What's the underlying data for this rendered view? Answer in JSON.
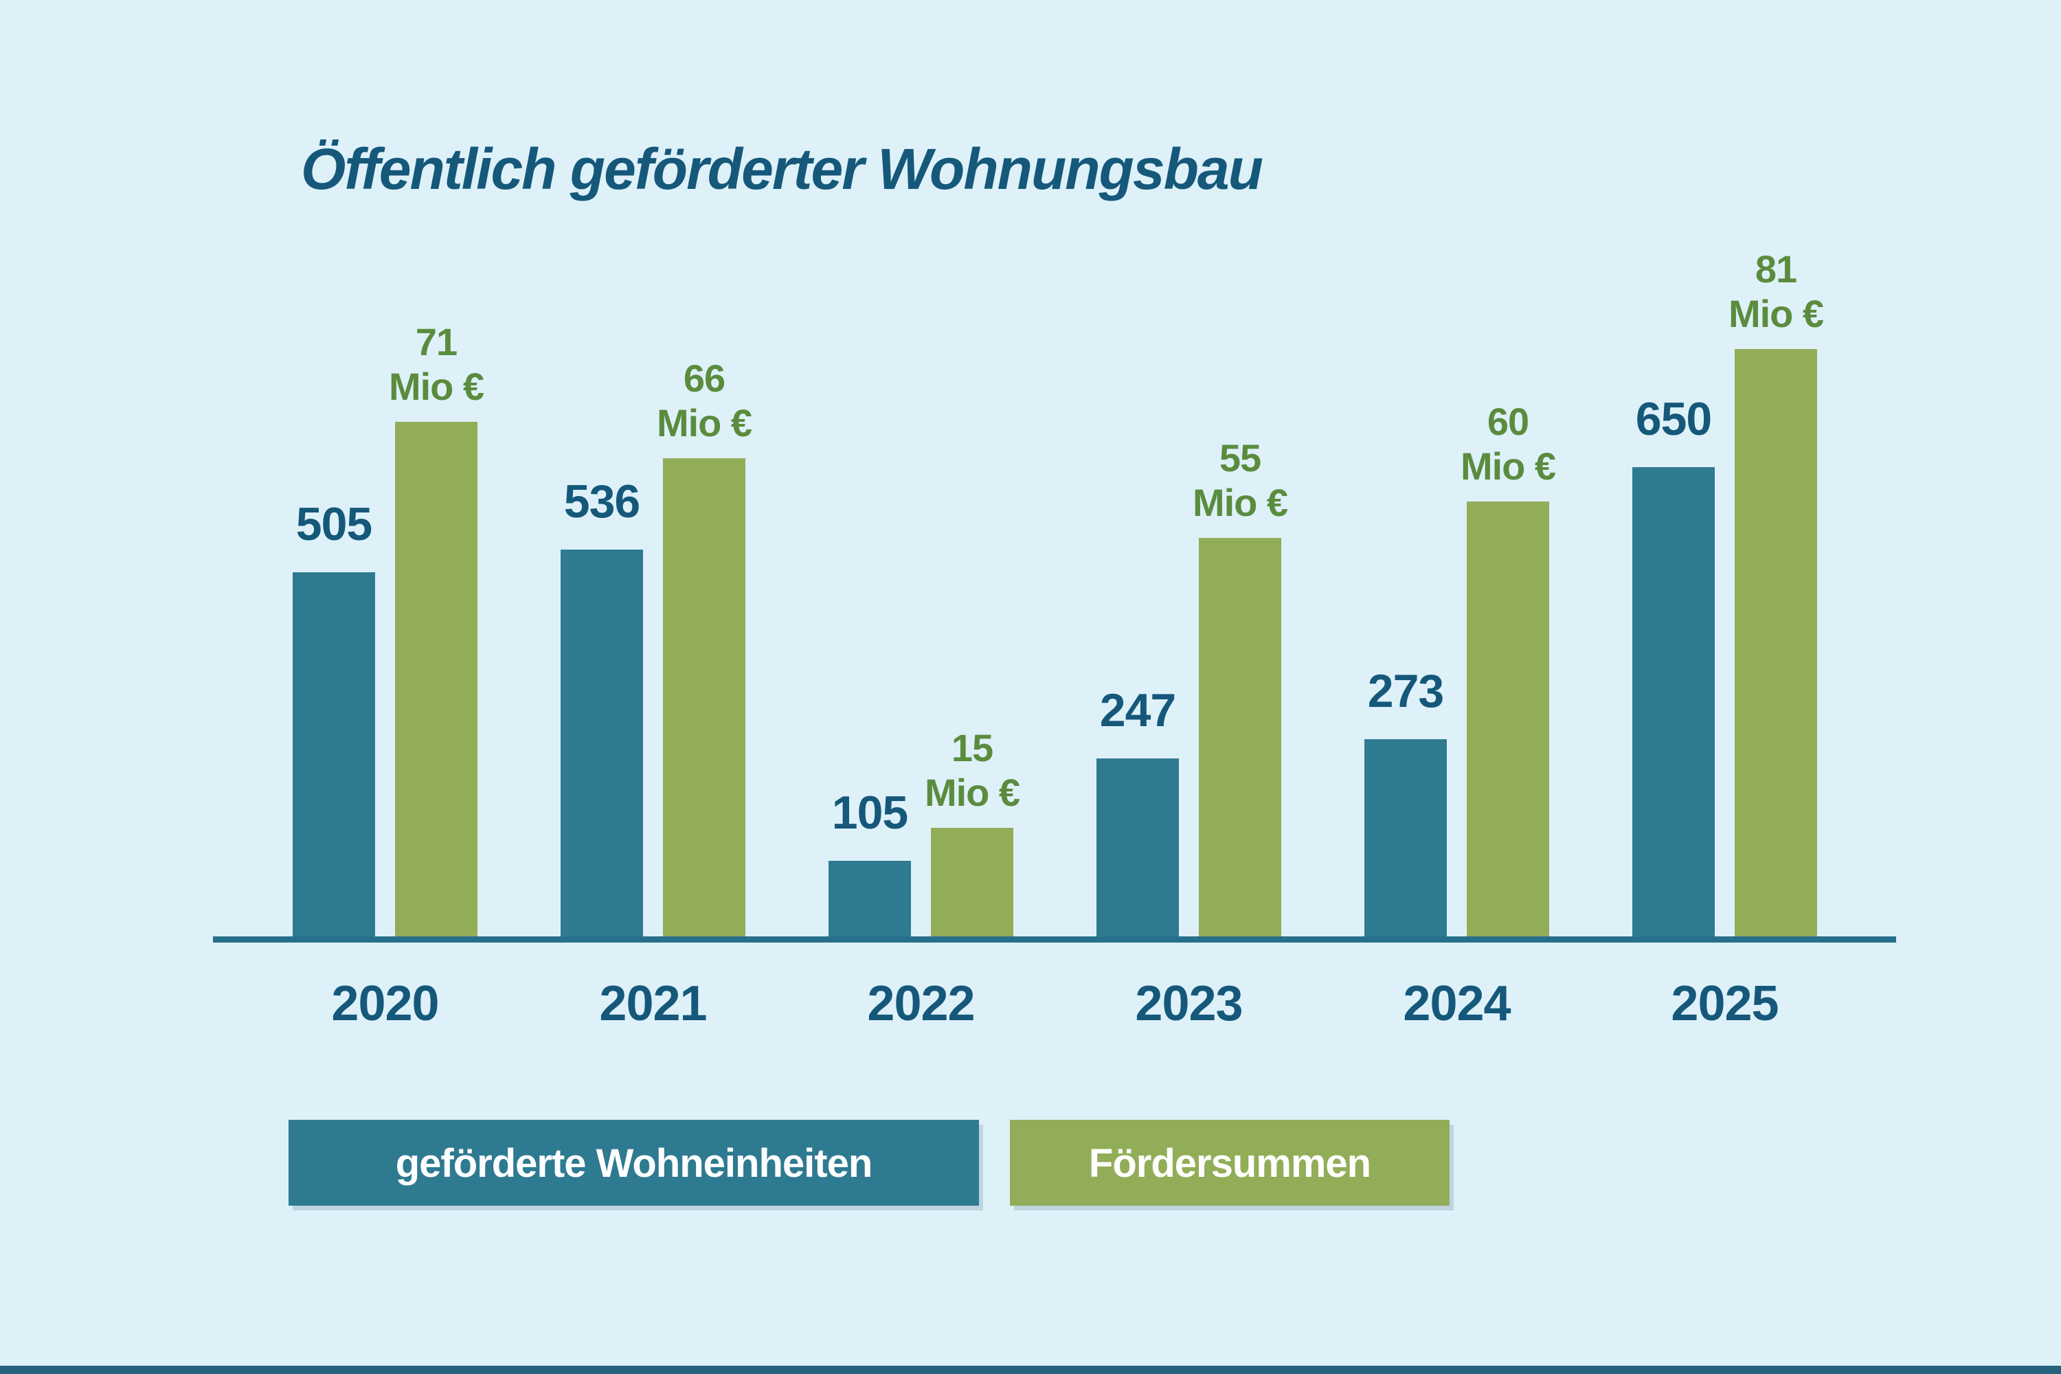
{
  "page": {
    "background_color": "#def1f9",
    "bottom_bar_color": "#26617f",
    "text_color_dark": "#15587a",
    "text_color_green": "#5b8c3e",
    "axis_color": "#27708c"
  },
  "chart_data": {
    "type": "bar",
    "title": "Öffentlich geförderter Wohnungsbau",
    "categories": [
      "2020",
      "2021",
      "2022",
      "2023",
      "2024",
      "2025"
    ],
    "series": [
      {
        "name": "geförderte Wohneinheiten",
        "key": "wohneinheiten",
        "color": "#2e7a91",
        "label_color": "#15587a",
        "unit": "",
        "values": [
          505,
          536,
          105,
          247,
          273,
          650
        ]
      },
      {
        "name": "Fördersummen",
        "key": "foerdersummen",
        "color": "#92ad58",
        "label_color": "#5b8c3e",
        "unit": "Mio €",
        "values": [
          71,
          66,
          15,
          55,
          60,
          81
        ]
      }
    ],
    "xlabel": "",
    "ylabel": "",
    "grid": false,
    "y_axis_shown": false,
    "legend_position": "bottom",
    "value_labels_shown": true
  },
  "legend": {
    "items": [
      {
        "label": "geförderte Wohneinheiten",
        "color": "#2e7a91",
        "text_color": "#ffffff"
      },
      {
        "label": "Fördersummen",
        "color": "#92ad58",
        "text_color": "#ffffff"
      }
    ]
  }
}
